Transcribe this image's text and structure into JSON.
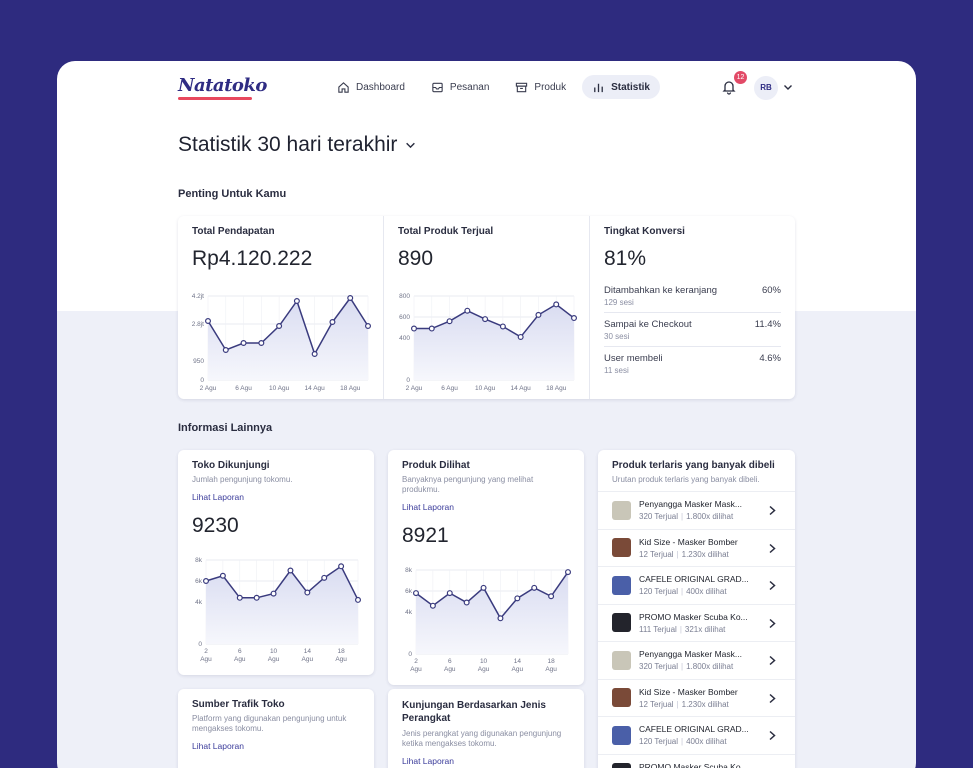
{
  "brand": {
    "logo_text": "Natatoko",
    "accent": "#e8485e",
    "primary": "#2f2c83"
  },
  "nav": [
    {
      "label": "Dashboard",
      "icon": "home-icon",
      "active": false
    },
    {
      "label": "Pesanan",
      "icon": "inbox-icon",
      "active": false
    },
    {
      "label": "Produk",
      "icon": "box-icon",
      "active": false
    },
    {
      "label": "Statistik",
      "icon": "bar-chart-icon",
      "active": true
    }
  ],
  "notifications": {
    "count": "12"
  },
  "user": {
    "initials": "RB"
  },
  "page_title": "Statistik 30 hari terakhir",
  "section1_title": "Penting Untuk Kamu",
  "revenue": {
    "label": "Total Pendapatan",
    "value": "Rp4.120.222"
  },
  "sold": {
    "label": "Total Produk Terjual",
    "value": "890"
  },
  "conversion": {
    "label": "Tingkat Konversi",
    "value": "81%",
    "rows": [
      {
        "title": "Ditambahkan ke keranjang",
        "sub": "129 sesi",
        "pct": "60%"
      },
      {
        "title": "Sampai ke Checkout",
        "sub": "30 sesi",
        "pct": "11.4%"
      },
      {
        "title": "User membeli",
        "sub": "11 sesi",
        "pct": "4.6%"
      }
    ]
  },
  "section2_title": "Informasi Lainnya",
  "store_visits": {
    "title": "Toko Dikunjungi",
    "desc": "Jumlah pengunjung tokomu.",
    "link": "Lihat Laporan",
    "value": "9230"
  },
  "product_views": {
    "title": "Produk Dilihat",
    "desc": "Banyaknya pengunjung yang melihat produkmu.",
    "link": "Lihat Laporan",
    "value": "8921"
  },
  "traffic": {
    "title": "Sumber Trafik Toko",
    "desc": "Platform yang digunakan pengunjung untuk mengakses tokomu.",
    "link": "Lihat Laporan"
  },
  "device": {
    "title": "Kunjungan Berdasarkan Jenis Perangkat",
    "desc": "Jenis perangkat yang digunakan pengunjung ketika mengakses tokomu.",
    "link": "Lihat Laporan"
  },
  "bestsellers": {
    "title": "Produk terlaris yang banyak dibeli",
    "desc": "Urutan produk terlaris yang banyak dibeli.",
    "items": [
      {
        "name": "Penyangga Masker Mask...",
        "sold": "320 Terjual",
        "views": "1.800x dilihat",
        "thumb": "#c9c6b8"
      },
      {
        "name": "Kid Size - Masker Bomber",
        "sold": "12 Terjual",
        "views": "1.230x dilihat",
        "thumb": "#7a4a38"
      },
      {
        "name": "CAFELE ORIGINAL GRAD...",
        "sold": "120 Terjual",
        "views": "400x dilihat",
        "thumb": "#4a5fa8"
      },
      {
        "name": "PROMO Masker Scuba Ko...",
        "sold": "111 Terjual",
        "views": "321x dilihat",
        "thumb": "#23242c"
      },
      {
        "name": "Penyangga Masker Mask...",
        "sold": "320 Terjual",
        "views": "1.800x dilihat",
        "thumb": "#c9c6b8"
      },
      {
        "name": "Kid Size - Masker Bomber",
        "sold": "12 Terjual",
        "views": "1.230x dilihat",
        "thumb": "#7a4a38"
      },
      {
        "name": "CAFELE ORIGINAL GRAD...",
        "sold": "120 Terjual",
        "views": "400x dilihat",
        "thumb": "#4a5fa8"
      },
      {
        "name": "PROMO Masker Scuba Ko...",
        "sold": "",
        "views": "",
        "thumb": "#23242c"
      }
    ]
  },
  "chart_data": [
    {
      "type": "line",
      "id": "revenue",
      "x": [
        "2 Agu",
        "4 Agu",
        "6 Agu",
        "8 Agu",
        "10 Agu",
        "12 Agu",
        "14 Agu",
        "16 Agu",
        "18 Agu",
        "20 Agu"
      ],
      "y_ticks": [
        "0",
        "950",
        "2.8jt",
        "4.2jt"
      ],
      "values": [
        2.95,
        1.5,
        1.85,
        1.85,
        2.7,
        3.95,
        1.3,
        2.9,
        4.1,
        2.7
      ],
      "xticks_shown": [
        "2 Agu",
        "6 Agu",
        "10 Agu",
        "14 Agu",
        "18 Agu"
      ]
    },
    {
      "type": "line",
      "id": "sold",
      "x": [
        "2 Agu",
        "4 Agu",
        "6 Agu",
        "8 Agu",
        "10 Agu",
        "12 Agu",
        "14 Agu",
        "16 Agu",
        "18 Agu",
        "20 Agu"
      ],
      "y_ticks": [
        "0",
        "400",
        "600",
        "800"
      ],
      "values": [
        490,
        490,
        560,
        660,
        580,
        510,
        410,
        620,
        720,
        590
      ],
      "xticks_shown": [
        "2 Agu",
        "6 Agu",
        "10 Agu",
        "14 Agu",
        "18 Agu"
      ]
    },
    {
      "type": "line",
      "id": "visits",
      "x": [
        "2 Agu",
        "4 Agu",
        "6 Agu",
        "8 Agu",
        "10 Agu",
        "12 Agu",
        "14 Agu",
        "16 Agu",
        "18 Agu",
        "20 Agu"
      ],
      "y_ticks": [
        "0",
        "4k",
        "6k",
        "8k"
      ],
      "values": [
        6.0,
        6.5,
        4.4,
        4.4,
        4.8,
        7.0,
        4.9,
        6.3,
        7.4,
        4.2
      ],
      "xticks_shown": [
        "2 Agu",
        "6 Agu",
        "10 Agu",
        "14 Agu",
        "18 Agu"
      ]
    },
    {
      "type": "line",
      "id": "views",
      "x": [
        "2 Agu",
        "4 Agu",
        "6 Agu",
        "8 Agu",
        "10 Agu",
        "12 Agu",
        "14 Agu",
        "16 Agu",
        "18 Agu",
        "20 Agu"
      ],
      "y_ticks": [
        "0",
        "4k",
        "6k",
        "8k"
      ],
      "values": [
        5.8,
        4.6,
        5.8,
        4.9,
        6.3,
        3.4,
        5.3,
        6.3,
        5.5,
        7.8
      ],
      "xticks_shown": [
        "2 Agu",
        "6 Agu",
        "10 Agu",
        "14 Agu",
        "18 Agu"
      ]
    }
  ]
}
